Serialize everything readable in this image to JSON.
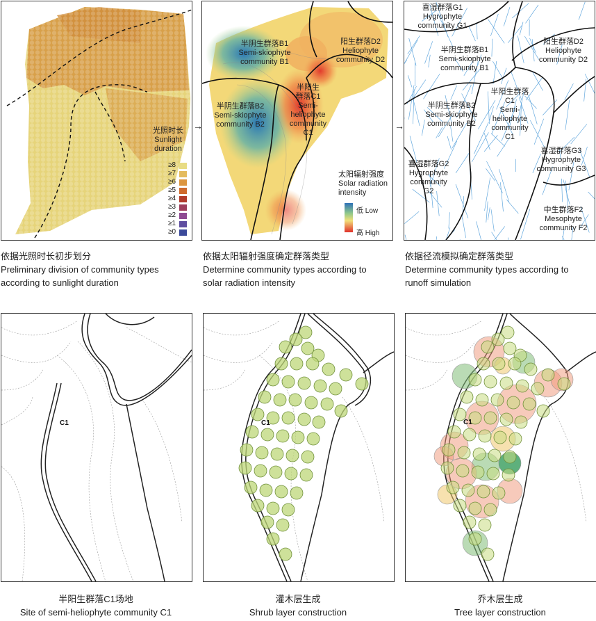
{
  "panel1": {
    "legend_title": [
      "光照时长",
      "Sunlight",
      "duration"
    ],
    "legend_items": [
      {
        "label": "≥8",
        "color": "#e8dc84"
      },
      {
        "label": "≥7",
        "color": "#e4bb5e"
      },
      {
        "label": "≥6",
        "color": "#dc9640"
      },
      {
        "label": "≥5",
        "color": "#cf6b2e"
      },
      {
        "label": "≥4",
        "color": "#b13b2b"
      },
      {
        "label": "≥3",
        "color": "#9d3e5c"
      },
      {
        "label": "≥2",
        "color": "#8e4a92"
      },
      {
        "label": "≥1",
        "color": "#5f4ea0"
      },
      {
        "label": "≥0",
        "color": "#3b4a9a"
      }
    ],
    "caption": [
      "依据光照时长初步划分",
      "Preliminary division of community types",
      "according to sunlight duration"
    ]
  },
  "panel2": {
    "communities": {
      "b1": [
        "半阴生群落B1",
        "Semi-skiophyte",
        "community B1"
      ],
      "d2": [
        "阳生群落D2",
        "Heliophyte",
        "community D2"
      ],
      "b2": [
        "半阴生群落B2",
        "Semi-skiophyte",
        "community B2"
      ],
      "c1": [
        "半阳生",
        "群落C1",
        "Semi-",
        "heliophyte",
        "community",
        "C1"
      ]
    },
    "legend_title": [
      "太阳辐射强度",
      "Solar radiation",
      "intensity"
    ],
    "legend_low": "低  Low",
    "legend_high": "高  High",
    "caption": [
      "依据太阳辐射强度确定群落类型",
      "Determine community types according to",
      "solar radiation intensity"
    ]
  },
  "panel3": {
    "communities": {
      "g1": [
        "喜湿群落G1",
        "Hygrophyte",
        "community G1"
      ],
      "b1": [
        "半阴生群落B1",
        "Semi-skiophyte",
        "community B1"
      ],
      "d2": [
        "阳生群落D2",
        "Heliophyte",
        "community D2"
      ],
      "c1": [
        "半阳生群落",
        "C1",
        "Semi-",
        "heliophyte",
        "community",
        "C1"
      ],
      "b2": [
        "半阴生群落B2",
        "Semi-skiophyte",
        "community B2"
      ],
      "g3": [
        "喜湿群落G3",
        "Hygrophyte",
        "community G3"
      ],
      "g2": [
        "喜湿群落G2",
        "Hygrophyte",
        "community",
        "G2"
      ],
      "f2": [
        "中生群落F2",
        "Mesophyte",
        "community F2"
      ]
    },
    "caption": [
      "依据径流模拟确定群落类型",
      "Determine community types according to",
      "runoff simulation"
    ]
  },
  "panel4": {
    "site_label": "C1",
    "caption": [
      "半阳生群落C1场地",
      "Site of semi-heliophyte community C1"
    ]
  },
  "panel5": {
    "site_label": "C1",
    "caption": [
      "灌木层生成",
      "Shrub layer construction"
    ]
  },
  "panel6": {
    "site_label": "C1",
    "caption": [
      "乔木层生成",
      "Tree layer construction"
    ]
  },
  "arrows": [
    "→",
    "→"
  ]
}
